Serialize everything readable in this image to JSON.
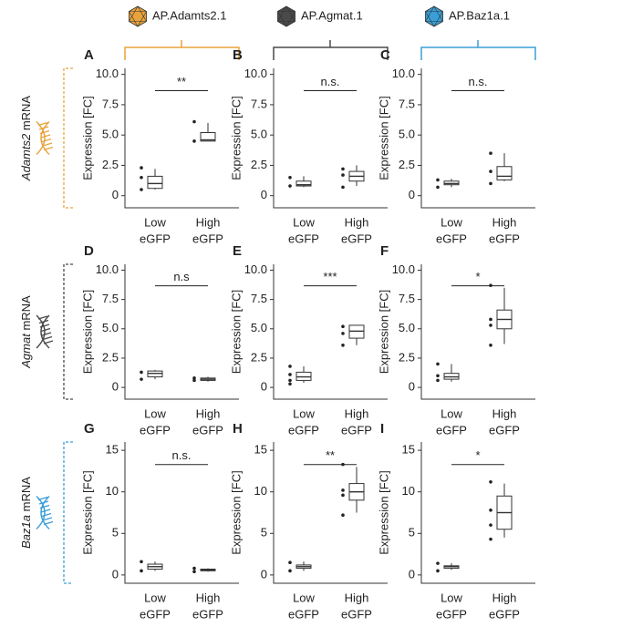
{
  "columns": [
    {
      "title": "AP.Adamts2.1",
      "color": "#e8a33c"
    },
    {
      "title": "AP.Agmat.1",
      "color": "#4a4a4a"
    },
    {
      "title": "AP.Baz1a.1",
      "color": "#3a9fd6"
    }
  ],
  "rows": [
    {
      "gene": "Adamts2",
      "suffix": " mRNA",
      "color": "#e8a33c"
    },
    {
      "gene": "Agmat",
      "suffix": " mRNA",
      "color": "#4a4a4a"
    },
    {
      "gene": "Baz1a",
      "suffix": " mRNA",
      "color": "#3a9fd6"
    }
  ],
  "chart_data": [
    {
      "type": "box",
      "label": "A",
      "ylabel": "Expression [FC]",
      "significance": "**",
      "categories": [
        [
          "Low",
          "eGFP"
        ],
        [
          "High",
          "eGFP"
        ]
      ],
      "ylim": [
        -1,
        10.5
      ],
      "yticks": [
        0,
        2.5,
        {
          "value": 5,
          "label": "5.0"
        },
        7.5,
        {
          "value": 10,
          "label": "10.0"
        }
      ],
      "boxes": [
        {
          "min": 0.5,
          "q1": 0.6,
          "median": 1.0,
          "q3": 1.6,
          "max": 2.2,
          "points": [
            0.5,
            1.5,
            2.3
          ]
        },
        {
          "min": 4.5,
          "q1": 4.5,
          "median": 4.6,
          "q3": 5.2,
          "max": 6.0,
          "points": [
            4.5,
            6.1
          ]
        }
      ]
    },
    {
      "type": "box",
      "label": "B",
      "ylabel": "Expression [FC]",
      "significance": "n.s.",
      "categories": [
        [
          "Low",
          "eGFP"
        ],
        [
          "High",
          "eGFP"
        ]
      ],
      "ylim": [
        -1,
        10.5
      ],
      "yticks": [
        0,
        2.5,
        {
          "value": 5,
          "label": "5.0"
        },
        7.5,
        {
          "value": 10,
          "label": "10.0"
        }
      ],
      "boxes": [
        {
          "min": 0.7,
          "q1": 0.8,
          "median": 0.9,
          "q3": 1.2,
          "max": 1.6,
          "points": [
            0.8,
            1.5
          ]
        },
        {
          "min": 0.8,
          "q1": 1.2,
          "median": 1.6,
          "q3": 2.0,
          "max": 2.5,
          "points": [
            0.7,
            1.7,
            2.2
          ]
        }
      ]
    },
    {
      "type": "box",
      "label": "C",
      "ylabel": "Expression [FC]",
      "significance": "n.s.",
      "categories": [
        [
          "Low",
          "eGFP"
        ],
        [
          "High",
          "eGFP"
        ]
      ],
      "ylim": [
        -1,
        10.5
      ],
      "yticks": [
        0,
        2.5,
        {
          "value": 5,
          "label": "5.0"
        },
        7.5,
        {
          "value": 10,
          "label": "10.0"
        }
      ],
      "boxes": [
        {
          "min": 0.7,
          "q1": 0.9,
          "median": 1.0,
          "q3": 1.2,
          "max": 1.4,
          "points": [
            0.7,
            1.3
          ]
        },
        {
          "min": 1.2,
          "q1": 1.3,
          "median": 1.6,
          "q3": 2.4,
          "max": 3.5,
          "points": [
            1.0,
            2.0,
            3.5
          ]
        }
      ]
    },
    {
      "type": "box",
      "label": "D",
      "ylabel": "Expression [FC]",
      "significance": "n.s",
      "categories": [
        [
          "Low",
          "eGFP"
        ],
        [
          "High",
          "eGFP"
        ]
      ],
      "ylim": [
        -1,
        10.5
      ],
      "yticks": [
        0,
        2.5,
        {
          "value": 5,
          "label": "5.0"
        },
        7.5,
        {
          "value": 10,
          "label": "10.0"
        }
      ],
      "boxes": [
        {
          "min": 0.7,
          "q1": 0.9,
          "median": 1.2,
          "q3": 1.4,
          "max": 1.5,
          "points": [
            0.7,
            1.3
          ]
        },
        {
          "min": 0.5,
          "q1": 0.6,
          "median": 0.7,
          "q3": 0.8,
          "max": 0.9,
          "points": [
            0.6,
            0.8
          ]
        }
      ]
    },
    {
      "type": "box",
      "label": "E",
      "ylabel": "Expression [FC]",
      "significance": "***",
      "categories": [
        [
          "Low",
          "eGFP"
        ],
        [
          "High",
          "eGFP"
        ]
      ],
      "ylim": [
        -1,
        10.5
      ],
      "yticks": [
        0,
        2.5,
        {
          "value": 5,
          "label": "5.0"
        },
        7.5,
        {
          "value": 10,
          "label": "10.0"
        }
      ],
      "boxes": [
        {
          "min": 0.4,
          "q1": 0.6,
          "median": 0.9,
          "q3": 1.3,
          "max": 1.8,
          "points": [
            0.3,
            0.6,
            1.1,
            1.8
          ]
        },
        {
          "min": 3.6,
          "q1": 4.2,
          "median": 4.8,
          "q3": 5.3,
          "max": 5.3,
          "points": [
            3.6,
            4.6,
            5.2
          ]
        }
      ]
    },
    {
      "type": "box",
      "label": "F",
      "ylabel": "Expression [FC]",
      "significance": "*",
      "categories": [
        [
          "Low",
          "eGFP"
        ],
        [
          "High",
          "eGFP"
        ]
      ],
      "ylim": [
        -1,
        10.5
      ],
      "yticks": [
        0,
        2.5,
        {
          "value": 5,
          "label": "5.0"
        },
        7.5,
        {
          "value": 10,
          "label": "10.0"
        }
      ],
      "boxes": [
        {
          "min": 0.5,
          "q1": 0.7,
          "median": 0.9,
          "q3": 1.2,
          "max": 2.0,
          "points": [
            0.6,
            1.0,
            2.0
          ]
        },
        {
          "min": 3.7,
          "q1": 5.0,
          "median": 5.8,
          "q3": 6.6,
          "max": 8.5,
          "points": [
            3.6,
            5.3,
            5.8,
            8.7
          ]
        }
      ]
    },
    {
      "type": "box",
      "label": "G",
      "ylabel": "Expression [FC]",
      "significance": "n.s.",
      "categories": [
        [
          "Low",
          "eGFP"
        ],
        [
          "High",
          "eGFP"
        ]
      ],
      "ylim": [
        -1,
        16
      ],
      "yticks": [
        0,
        5,
        10,
        15
      ],
      "boxes": [
        {
          "min": 0.5,
          "q1": 0.7,
          "median": 1.0,
          "q3": 1.3,
          "max": 1.6,
          "points": [
            0.5,
            1.6
          ]
        },
        {
          "min": 0.4,
          "q1": 0.5,
          "median": 0.6,
          "q3": 0.7,
          "max": 0.8,
          "points": [
            0.4,
            0.8
          ]
        }
      ]
    },
    {
      "type": "box",
      "label": "H",
      "ylabel": "Expression [FC]",
      "significance": "**",
      "categories": [
        [
          "Low",
          "eGFP"
        ],
        [
          "High",
          "eGFP"
        ]
      ],
      "ylim": [
        -1,
        16
      ],
      "yticks": [
        0,
        5,
        10,
        15
      ],
      "boxes": [
        {
          "min": 0.5,
          "q1": 0.8,
          "median": 1.0,
          "q3": 1.2,
          "max": 1.6,
          "points": [
            0.5,
            1.5
          ]
        },
        {
          "min": 7.5,
          "q1": 9.0,
          "median": 10.0,
          "q3": 11.0,
          "max": 13.0,
          "points": [
            7.2,
            9.6,
            10.2,
            13.3
          ]
        }
      ]
    },
    {
      "type": "box",
      "label": "I",
      "ylabel": "Expression [FC]",
      "significance": "*",
      "categories": [
        [
          "Low",
          "eGFP"
        ],
        [
          "High",
          "eGFP"
        ]
      ],
      "ylim": [
        -1,
        16
      ],
      "yticks": [
        0,
        5,
        10,
        15
      ],
      "boxes": [
        {
          "min": 0.6,
          "q1": 0.8,
          "median": 1.0,
          "q3": 1.1,
          "max": 1.4,
          "points": [
            0.5,
            1.4
          ]
        },
        {
          "min": 4.5,
          "q1": 5.5,
          "median": 7.5,
          "q3": 9.5,
          "max": 11.0,
          "points": [
            4.3,
            6.0,
            7.8,
            11.2
          ]
        }
      ]
    }
  ]
}
